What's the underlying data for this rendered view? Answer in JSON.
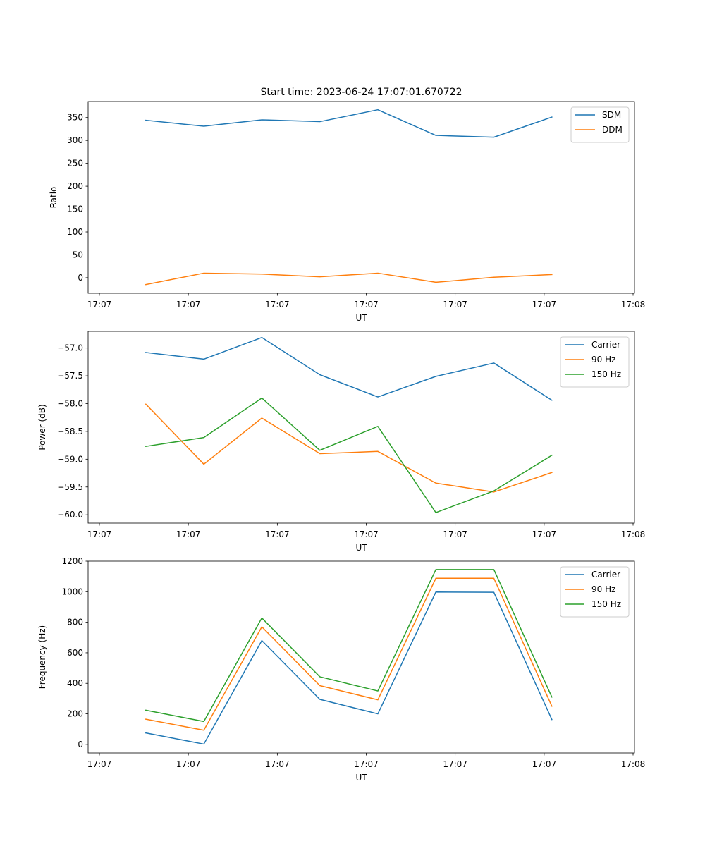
{
  "figure": {
    "title": "Start time: 2023-06-24 17:07:01.670722"
  },
  "chart_data": [
    {
      "type": "line",
      "title": "Start time: 2023-06-24 17:07:01.670722",
      "xlabel": "UT",
      "ylabel": "Ratio",
      "x_tick_labels": [
        "17:07",
        "17:07",
        "17:07",
        "17:07",
        "17:07",
        "17:07",
        "17:07"
      ],
      "x_tick_last_label": "17:08",
      "x": [
        1,
        2,
        3,
        4,
        5,
        6,
        7,
        8
      ],
      "xlim": [
        0.2,
        9.4
      ],
      "yticks": [
        0,
        50,
        100,
        150,
        200,
        250,
        300,
        350
      ],
      "ylim": [
        -34,
        385
      ],
      "grid": false,
      "legend_position": "top-right",
      "series": [
        {
          "name": "SDM",
          "color": "#1f77b4",
          "values": [
            344,
            331,
            345,
            341,
            367,
            311,
            307,
            351
          ]
        },
        {
          "name": "DDM",
          "color": "#ff7f0e",
          "values": [
            -15,
            10,
            8,
            2,
            10,
            -10,
            1,
            7
          ]
        }
      ]
    },
    {
      "type": "line",
      "title": "",
      "xlabel": "UT",
      "ylabel": "Power (dB)",
      "x_tick_labels": [
        "17:07",
        "17:07",
        "17:07",
        "17:07",
        "17:07",
        "17:07",
        "17:07"
      ],
      "x_tick_last_label": "17:08",
      "x": [
        1,
        2,
        3,
        4,
        5,
        6,
        7,
        8
      ],
      "xlim": [
        0.2,
        9.4
      ],
      "yticks": [
        -60.0,
        -59.5,
        -59.0,
        -58.5,
        -58.0,
        -57.5,
        -57.0
      ],
      "ytick_labels": [
        "−60.0",
        "−59.5",
        "−59.0",
        "−58.5",
        "−58.0",
        "−57.5",
        "−57.0"
      ],
      "ylim": [
        -60.15,
        -56.7
      ],
      "grid": false,
      "legend_position": "top-right",
      "series": [
        {
          "name": "Carrier",
          "color": "#1f77b4",
          "values": [
            -57.08,
            -57.2,
            -56.81,
            -57.48,
            -57.88,
            -57.51,
            -57.27,
            -57.94
          ]
        },
        {
          "name": "90 Hz",
          "color": "#ff7f0e",
          "values": [
            -58.01,
            -59.09,
            -58.26,
            -58.9,
            -58.86,
            -59.43,
            -59.59,
            -59.24
          ]
        },
        {
          "name": "150 Hz",
          "color": "#2ca02c",
          "values": [
            -58.77,
            -58.61,
            -57.9,
            -58.84,
            -58.41,
            -59.96,
            -59.57,
            -58.93
          ]
        }
      ]
    },
    {
      "type": "line",
      "title": "",
      "xlabel": "UT",
      "ylabel": "Frequency (Hz)",
      "x_tick_labels": [
        "17:07",
        "17:07",
        "17:07",
        "17:07",
        "17:07",
        "17:07",
        "17:07"
      ],
      "x_tick_last_label": "17:08",
      "x": [
        1,
        2,
        3,
        4,
        5,
        6,
        7,
        8
      ],
      "xlim": [
        0.2,
        9.4
      ],
      "yticks": [
        0,
        200,
        400,
        600,
        800,
        1000,
        1200
      ],
      "ylim": [
        -56,
        1200
      ],
      "grid": false,
      "legend_position": "top-right",
      "series": [
        {
          "name": "Carrier",
          "color": "#1f77b4",
          "values": [
            75,
            2,
            680,
            295,
            200,
            998,
            996,
            163
          ]
        },
        {
          "name": "90 Hz",
          "color": "#ff7f0e",
          "values": [
            165,
            93,
            770,
            385,
            292,
            1088,
            1088,
            250
          ]
        },
        {
          "name": "150 Hz",
          "color": "#2ca02c",
          "values": [
            224,
            150,
            828,
            443,
            350,
            1145,
            1145,
            310
          ]
        }
      ]
    }
  ]
}
